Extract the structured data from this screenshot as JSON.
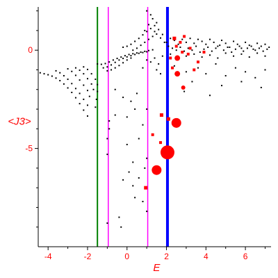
{
  "chart_data": {
    "type": "scatter",
    "xlabel": "E",
    "ylabel": "<J3>",
    "xlim": [
      -4.5,
      7.3
    ],
    "ylim": [
      -10,
      2.2
    ],
    "x_ticks": [
      -4,
      -2,
      0,
      2,
      4,
      6
    ],
    "y_ticks": [
      0,
      -5
    ],
    "x_tick_labels": [
      "-4",
      "-2",
      "0",
      "2",
      "4",
      "6"
    ],
    "y_tick_labels": [
      "0",
      "-5"
    ],
    "grid": false,
    "vertical_lines": [
      {
        "x": -1.5,
        "color": "#008000",
        "width": 2
      },
      {
        "x": -0.95,
        "color": "#ff00ff",
        "width": 1.5
      },
      {
        "x": 1.05,
        "color": "#ff00ff",
        "width": 1.5
      },
      {
        "x": 2.05,
        "color": "#0000ff",
        "width": 4
      }
    ],
    "black_points": [
      [
        -4.4,
        -1.15
      ],
      [
        -4.2,
        -1.2
      ],
      [
        -4.0,
        -1.25
      ],
      [
        -3.8,
        -1.32
      ],
      [
        -3.6,
        -1.42
      ],
      [
        -3.4,
        -1.55
      ],
      [
        -3.2,
        -1.72
      ],
      [
        -3.0,
        -1.92
      ],
      [
        -2.8,
        -2.15
      ],
      [
        -2.6,
        -2.42
      ],
      [
        -2.4,
        -2.72
      ],
      [
        -2.2,
        -3.05
      ],
      [
        -2.0,
        -3.35
      ],
      [
        -3.6,
        -1.05
      ],
      [
        -3.4,
        -1.15
      ],
      [
        -3.2,
        -1.3
      ],
      [
        -3.0,
        -1.48
      ],
      [
        -2.8,
        -1.7
      ],
      [
        -2.6,
        -1.95
      ],
      [
        -2.4,
        -2.2
      ],
      [
        -2.2,
        -2.5
      ],
      [
        -2.0,
        -2.8
      ],
      [
        -3.0,
        -0.95
      ],
      [
        -2.8,
        -1.08
      ],
      [
        -2.6,
        -1.28
      ],
      [
        -2.4,
        -1.52
      ],
      [
        -2.2,
        -1.78
      ],
      [
        -2.0,
        -2.05
      ],
      [
        -1.9,
        -2.35
      ],
      [
        -2.6,
        -0.9
      ],
      [
        -2.4,
        -1.02
      ],
      [
        -2.2,
        -1.2
      ],
      [
        -2.0,
        -1.45
      ],
      [
        -1.8,
        -1.72
      ],
      [
        -1.7,
        -2.0
      ],
      [
        -2.2,
        -0.85
      ],
      [
        -2.0,
        -0.98
      ],
      [
        -1.8,
        -1.2
      ],
      [
        -1.6,
        -1.48
      ],
      [
        -1.5,
        -1.75
      ],
      [
        -1.5,
        -2.1
      ],
      [
        -1.55,
        -2.5
      ],
      [
        -1.6,
        -2.9
      ],
      [
        -1.5,
        -0.7
      ],
      [
        -1.3,
        -0.72
      ],
      [
        -1.1,
        -0.68
      ],
      [
        -0.9,
        -0.6
      ],
      [
        -0.7,
        -0.5
      ],
      [
        -0.5,
        -0.42
      ],
      [
        -0.3,
        -0.35
      ],
      [
        -0.1,
        -0.28
      ],
      [
        0.1,
        -0.22
      ],
      [
        0.3,
        -0.18
      ],
      [
        0.5,
        -0.14
      ],
      [
        0.7,
        -0.1
      ],
      [
        0.9,
        -0.06
      ],
      [
        1.1,
        -0.02
      ],
      [
        1.3,
        0.02
      ],
      [
        -1.2,
        -0.9
      ],
      [
        -1.0,
        -0.85
      ],
      [
        -0.8,
        -0.75
      ],
      [
        -0.6,
        -0.62
      ],
      [
        -0.4,
        -0.5
      ],
      [
        -0.2,
        -0.42
      ],
      [
        0.0,
        -0.34
      ],
      [
        0.2,
        -0.28
      ],
      [
        0.4,
        -0.22
      ],
      [
        0.6,
        -0.16
      ],
      [
        0.8,
        -0.12
      ],
      [
        1.0,
        -0.08
      ],
      [
        -1.0,
        -1.05
      ],
      [
        -0.8,
        -1.0
      ],
      [
        -0.6,
        -0.9
      ],
      [
        -0.4,
        -0.78
      ],
      [
        -0.2,
        -0.64
      ],
      [
        0.0,
        -0.5
      ],
      [
        0.2,
        -0.4
      ],
      [
        -0.2,
        0.15
      ],
      [
        0.0,
        0.2
      ],
      [
        0.2,
        0.3
      ],
      [
        0.4,
        0.45
      ],
      [
        0.6,
        0.6
      ],
      [
        0.8,
        0.78
      ],
      [
        1.0,
        0.95
      ],
      [
        1.2,
        1.1
      ],
      [
        1.4,
        1.25
      ],
      [
        1.6,
        1.05
      ],
      [
        1.8,
        0.8
      ],
      [
        0.3,
        0.0
      ],
      [
        0.5,
        0.1
      ],
      [
        0.7,
        0.25
      ],
      [
        0.9,
        0.4
      ],
      [
        1.1,
        0.55
      ],
      [
        1.3,
        0.7
      ],
      [
        1.5,
        0.82
      ],
      [
        1.7,
        0.62
      ],
      [
        1.9,
        0.4
      ],
      [
        0.9,
        1.0
      ],
      [
        1.1,
        1.3
      ],
      [
        1.3,
        1.6
      ],
      [
        1.5,
        1.4
      ],
      [
        1.2,
        1.8
      ],
      [
        1.0,
        2.0
      ],
      [
        1.4,
        0.95
      ],
      [
        1.0,
        -0.5
      ],
      [
        1.2,
        -0.6
      ],
      [
        1.4,
        -0.4
      ],
      [
        1.6,
        -0.7
      ],
      [
        1.8,
        -0.3
      ],
      [
        1.5,
        -1.0
      ],
      [
        1.7,
        -1.2
      ],
      [
        0.8,
        -0.9
      ],
      [
        2.0,
        0.4
      ],
      [
        2.2,
        0.6
      ],
      [
        2.4,
        0.5
      ],
      [
        2.6,
        0.3
      ],
      [
        2.8,
        0.55
      ],
      [
        3.0,
        0.4
      ],
      [
        3.2,
        0.6
      ],
      [
        3.4,
        0.35
      ],
      [
        3.6,
        0.55
      ],
      [
        3.8,
        0.45
      ],
      [
        4.0,
        0.3
      ],
      [
        4.2,
        0.55
      ],
      [
        4.4,
        0.4
      ],
      [
        4.6,
        0.2
      ],
      [
        4.8,
        0.5
      ],
      [
        5.0,
        0.35
      ],
      [
        5.2,
        0.15
      ],
      [
        5.4,
        0.45
      ],
      [
        5.6,
        0.3
      ],
      [
        5.8,
        0.1
      ],
      [
        6.0,
        0.4
      ],
      [
        6.2,
        0.25
      ],
      [
        6.4,
        0.05
      ],
      [
        6.6,
        0.35
      ],
      [
        6.8,
        0.2
      ],
      [
        7.0,
        0.3
      ],
      [
        7.2,
        0.15
      ],
      [
        2.1,
        0.2
      ],
      [
        2.3,
        0.1
      ],
      [
        2.5,
        0.0
      ],
      [
        2.7,
        0.15
      ],
      [
        2.9,
        -0.05
      ],
      [
        3.1,
        0.1
      ],
      [
        3.3,
        0.0
      ],
      [
        3.5,
        0.2
      ],
      [
        3.7,
        -0.1
      ],
      [
        3.9,
        0.05
      ],
      [
        4.1,
        0.15
      ],
      [
        4.3,
        -0.05
      ],
      [
        4.5,
        0.1
      ],
      [
        4.7,
        0.25
      ],
      [
        4.9,
        0.0
      ],
      [
        5.1,
        0.15
      ],
      [
        5.3,
        -0.1
      ],
      [
        5.5,
        0.05
      ],
      [
        5.7,
        0.2
      ],
      [
        5.9,
        -0.05
      ],
      [
        6.1,
        0.1
      ],
      [
        6.3,
        0.2
      ],
      [
        6.5,
        0.0
      ],
      [
        6.7,
        0.1
      ],
      [
        6.9,
        -0.05
      ],
      [
        7.1,
        0.05
      ],
      [
        2.2,
        -0.2
      ],
      [
        2.6,
        -0.35
      ],
      [
        3.0,
        -0.3
      ],
      [
        3.4,
        -0.2
      ],
      [
        3.8,
        -0.35
      ],
      [
        4.2,
        -0.25
      ],
      [
        4.6,
        -0.4
      ],
      [
        5.0,
        -0.15
      ],
      [
        5.4,
        -0.3
      ],
      [
        5.8,
        -0.2
      ],
      [
        6.2,
        -0.35
      ],
      [
        6.6,
        -0.15
      ],
      [
        7.0,
        -0.3
      ],
      [
        2.4,
        -0.8
      ],
      [
        3.0,
        -1.1
      ],
      [
        3.6,
        -0.9
      ],
      [
        4.0,
        -1.2
      ],
      [
        4.5,
        -0.7
      ],
      [
        5.0,
        -1.3
      ],
      [
        5.5,
        -0.9
      ],
      [
        6.0,
        -1.1
      ],
      [
        6.5,
        -1.4
      ],
      [
        7.0,
        -1.0
      ],
      [
        3.3,
        -1.6
      ],
      [
        4.8,
        -1.8
      ],
      [
        5.8,
        -1.6
      ],
      [
        6.8,
        -1.9
      ],
      [
        2.9,
        -2.1
      ],
      [
        4.2,
        -2.3
      ],
      [
        -0.6,
        -2.0
      ],
      [
        -0.2,
        -2.4
      ],
      [
        0.2,
        -2.6
      ],
      [
        0.4,
        -3.0
      ],
      [
        0.0,
        -3.4
      ],
      [
        -0.6,
        -3.3
      ],
      [
        -0.9,
        -3.6
      ],
      [
        -0.9,
        -4.0
      ],
      [
        -1.0,
        -4.5
      ],
      [
        -1.0,
        -5.3
      ],
      [
        0.0,
        -4.8
      ],
      [
        0.3,
        -5.7
      ],
      [
        0.1,
        -6.2
      ],
      [
        -0.2,
        -6.6
      ],
      [
        0.3,
        -6.9
      ],
      [
        0.6,
        -6.5
      ],
      [
        0.4,
        -7.5
      ],
      [
        0.8,
        -7.7
      ],
      [
        1.0,
        -8.2
      ],
      [
        -0.4,
        -8.5
      ],
      [
        -1.0,
        -8.8
      ],
      [
        -0.3,
        -9.0
      ],
      [
        1.0,
        -5.5
      ],
      [
        0.9,
        -6.0
      ],
      [
        0.6,
        -4.5
      ],
      [
        0.8,
        -3.8
      ],
      [
        1.0,
        -3.0
      ],
      [
        0.5,
        -2.2
      ]
    ],
    "red_points": [
      {
        "x": 2.05,
        "y": -5.2,
        "r": 10
      },
      {
        "x": 1.5,
        "y": -6.1,
        "r": 7
      },
      {
        "x": 2.5,
        "y": -3.7,
        "r": 7
      },
      {
        "x": 2.55,
        "y": -1.2,
        "r": 4
      },
      {
        "x": 2.55,
        "y": -0.4,
        "r": 4
      },
      {
        "x": 2.85,
        "y": -1.9,
        "r": 3
      },
      {
        "x": 2.1,
        "y": -3.5,
        "r": 2.5
      },
      {
        "x": 1.75,
        "y": -3.3,
        "r": 2.5
      },
      {
        "x": 1.3,
        "y": -4.3,
        "r": 2
      },
      {
        "x": 1.7,
        "y": -4.7,
        "r": 2
      },
      {
        "x": 0.95,
        "y": -7.0,
        "r": 2.5
      },
      {
        "x": 2.4,
        "y": 0.6,
        "r": 2.5
      },
      {
        "x": 2.7,
        "y": 0.4,
        "r": 2
      },
      {
        "x": 3.1,
        "y": -0.2,
        "r": 2
      },
      {
        "x": 3.6,
        "y": -0.6,
        "r": 2
      },
      {
        "x": 2.3,
        "y": -0.9,
        "r": 2
      },
      {
        "x": 3.2,
        "y": 0.1,
        "r": 2
      },
      {
        "x": 2.8,
        "y": -0.1,
        "r": 2
      },
      {
        "x": 2.5,
        "y": 0.2,
        "r": 2
      },
      {
        "x": 2.9,
        "y": 0.7,
        "r": 2
      },
      {
        "x": 3.4,
        "y": -1.0,
        "r": 2
      },
      {
        "x": 2.2,
        "y": -0.4,
        "r": 2
      },
      {
        "x": 3.9,
        "y": -0.1,
        "r": 2
      }
    ]
  }
}
